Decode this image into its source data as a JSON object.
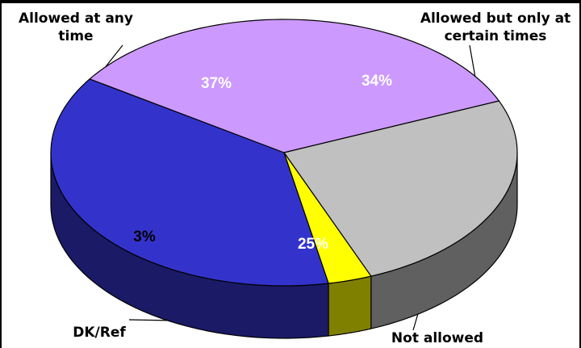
{
  "chart_data": {
    "type": "pie",
    "style": "3d",
    "title": "",
    "slices": [
      {
        "label": "Allowed at any time",
        "value": 37,
        "value_label": "37%",
        "color": "#3333cc",
        "side_color": "#1a1a66",
        "label_color": "#ffffff"
      },
      {
        "label": "Allowed but only at certain times",
        "value": 34,
        "value_label": "34%",
        "color": "#cc99ff",
        "side_color": "#664c80",
        "label_color": "#ffffff"
      },
      {
        "label": "Not allowed",
        "value": 25,
        "value_label": "25%",
        "color": "#c0c0c0",
        "side_color": "#606060",
        "label_color": "#ffffff"
      },
      {
        "label": "DK/Ref",
        "value": 3,
        "value_label": "3%",
        "color": "#ffff00",
        "side_color": "#808000",
        "label_color": "#000000"
      }
    ]
  }
}
